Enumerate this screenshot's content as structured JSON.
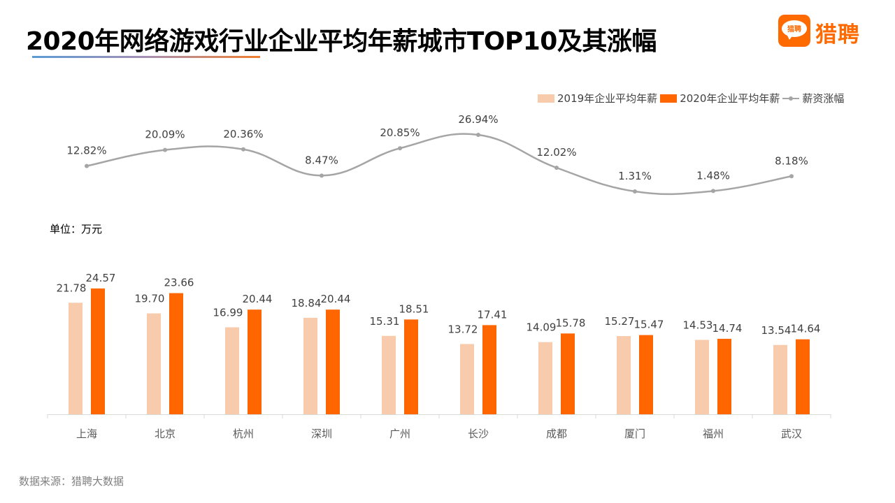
{
  "header": {
    "title": "2020年网络游戏行业企业平均年薪城市TOP10及其涨幅",
    "logo_icon_text": "猎聘",
    "logo_text": "猎聘"
  },
  "unit_label": "单位：万元",
  "source_label": "数据来源：猎聘大数据",
  "colors": {
    "series_2019": "#f8cbad",
    "series_2020": "#ff6600",
    "growth_line": "#a5a5a5",
    "brand": "#ff6a00"
  },
  "chart_data": {
    "type": "bar+line",
    "title": "2020年网络游戏行业企业平均年薪城市TOP10及其涨幅",
    "ylabel": "单位：万元",
    "categories": [
      "上海",
      "北京",
      "杭州",
      "深圳",
      "广州",
      "长沙",
      "成都",
      "厦门",
      "福州",
      "武汉"
    ],
    "series": [
      {
        "name": "2019年企业平均年薪",
        "type": "bar",
        "values": [
          21.78,
          19.7,
          16.99,
          18.84,
          15.31,
          13.72,
          14.09,
          15.27,
          14.53,
          13.54
        ],
        "labels": [
          "21.78",
          "19.70",
          "16.99",
          "18.84",
          "15.31",
          "13.72",
          "14.09",
          "15.27",
          "14.53",
          "13.54"
        ]
      },
      {
        "name": "2020年企业平均年薪",
        "type": "bar",
        "values": [
          24.57,
          23.66,
          20.44,
          20.44,
          18.51,
          17.41,
          15.78,
          15.47,
          14.74,
          14.64
        ],
        "labels": [
          "24.57",
          "23.66",
          "20.44",
          "20.44",
          "18.51",
          "17.41",
          "15.78",
          "15.47",
          "14.74",
          "14.64"
        ]
      },
      {
        "name": "薪资涨幅",
        "type": "line",
        "smooth": true,
        "values": [
          12.82,
          20.09,
          20.36,
          8.47,
          20.85,
          26.94,
          12.02,
          1.31,
          1.48,
          8.18
        ],
        "labels": [
          "12.82%",
          "20.09%",
          "20.36%",
          "8.47%",
          "20.85%",
          "26.94%",
          "12.02%",
          "1.31%",
          "1.48%",
          "8.18%"
        ]
      }
    ],
    "legend": {
      "position": "top-right",
      "entries": [
        "2019年企业平均年薪",
        "2020年企业平均年薪",
        "薪资涨幅"
      ]
    },
    "grid": false
  }
}
